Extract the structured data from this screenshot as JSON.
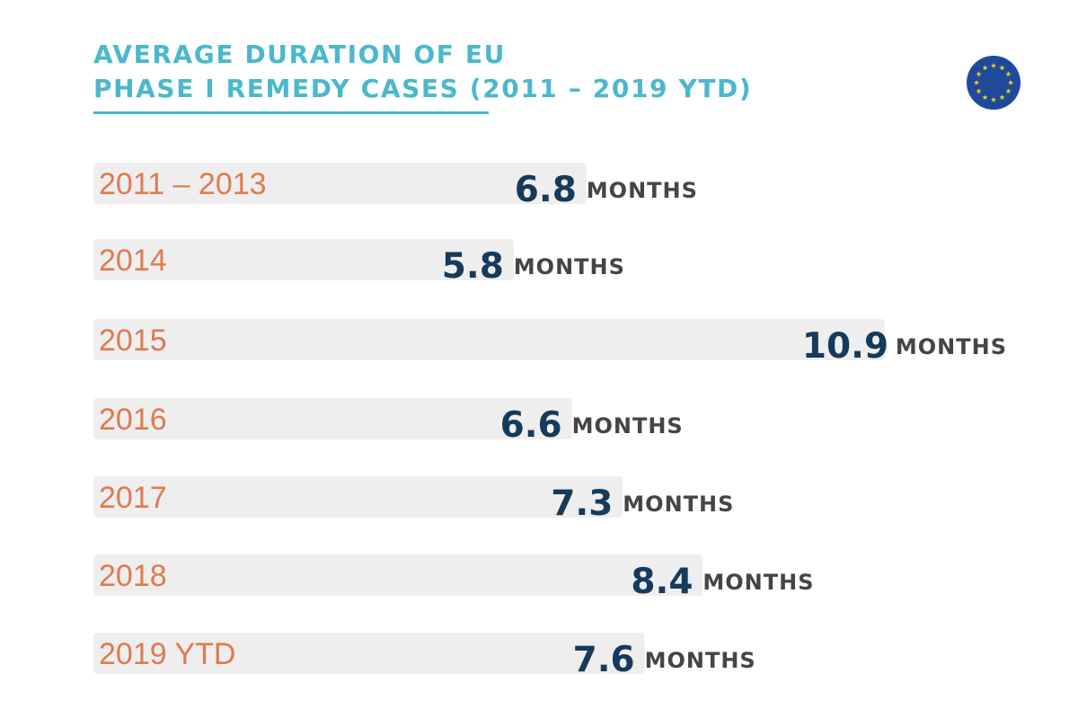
{
  "title": {
    "line1": "AVERAGE DURATION OF EU",
    "line2": "PHASE I REMEDY CASES (2011 – 2019 YTD)"
  },
  "logo": {
    "icon": "eu-flag-icon",
    "background_color": "#1f4a9b",
    "star_color": "#f5d40f"
  },
  "colors": {
    "title": "#4bb8cc",
    "category_label": "#e07a4e",
    "value_number": "#153a5b",
    "value_unit": "#454545",
    "bar": "#eeeeee"
  },
  "chart_data": {
    "type": "bar",
    "orientation": "horizontal",
    "title": "AVERAGE DURATION OF EU PHASE I REMEDY CASES (2011 – 2019 YTD)",
    "categories": [
      "2011 – 2013",
      "2014",
      "2015",
      "2016",
      "2017",
      "2018",
      "2019 YTD"
    ],
    "values": [
      6.8,
      5.8,
      10.9,
      6.6,
      7.3,
      8.4,
      7.6
    ],
    "value_labels": [
      "6.8",
      "5.8",
      "10.9",
      "6.6",
      "7.3",
      "8.4",
      "7.6"
    ],
    "unit": "MONTHS",
    "xlim": [
      0,
      10.9
    ],
    "grid": false
  }
}
